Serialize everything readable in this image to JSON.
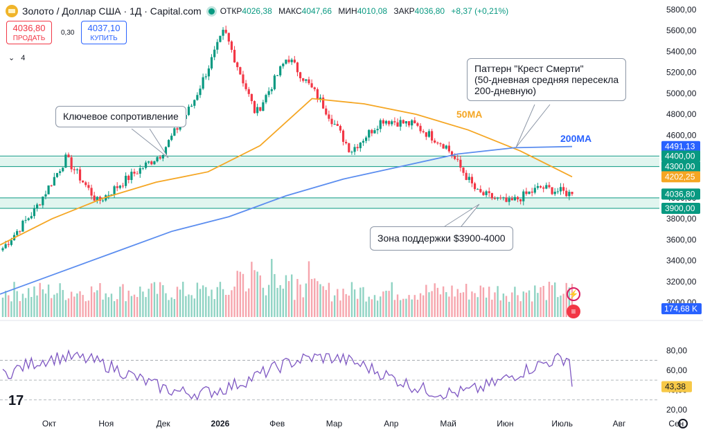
{
  "header": {
    "title": "Золото / Доллар США · 1Д · Capital.com",
    "open_label": "ОТКР",
    "open_value": "4026,38",
    "high_label": "МАКС",
    "high_value": "4047,66",
    "low_label": "МИН",
    "low_value": "4010,08",
    "close_label": "ЗАКР",
    "close_value": "4036,80",
    "change": "+8,37 (+0,21%)"
  },
  "trade": {
    "sell_price": "4036,80",
    "sell_label": "ПРОДАТЬ",
    "spread": "0,30",
    "buy_price": "4037,10",
    "buy_label": "КУПИТЬ",
    "collapse_count": "4"
  },
  "annotations": {
    "resistance": "Ключевое сопротивление",
    "death_cross": [
      "Паттерн \"Крест Смерти\"",
      "(50-дневная средняя пересекла",
      "200-дневную)"
    ],
    "support_zone": "Зона поддержки $3900-4000",
    "ma50_label": "50MA",
    "ma200_label": "200MA"
  },
  "price_axis": {
    "ticks": [
      "5800,00",
      "5600,00",
      "5400,00",
      "5200,00",
      "5000,00",
      "4800,00",
      "4600,00",
      "4400,00",
      "4300,00",
      "4200,00",
      "4000,00",
      "3900,00",
      "3800,00",
      "3600,00",
      "3400,00",
      "3200,00",
      "3000,00"
    ],
    "markers": [
      {
        "label": "4491,13",
        "value": 4491.13,
        "color": "#2962ff"
      },
      {
        "label": "4400,00",
        "value": 4400,
        "color": "#089981"
      },
      {
        "label": "4300,00",
        "value": 4300,
        "color": "#089981"
      },
      {
        "label": "4202,25",
        "value": 4202.25,
        "color": "#f5a623"
      },
      {
        "label": "4036,80",
        "value": 4036.8,
        "color": "#089981"
      },
      {
        "label": "3900,00",
        "value": 3900,
        "color": "#089981"
      }
    ],
    "volume_marker": {
      "label": "174,68 K",
      "color": "#2962ff"
    }
  },
  "rsi_axis": {
    "ticks": [
      "80,00",
      "60,00",
      "40,00",
      "20,00"
    ],
    "marker": {
      "label": "43,38",
      "color": "#f7c948"
    }
  },
  "time_axis": {
    "labels": [
      "Окт",
      "Ноя",
      "Дек",
      "2026",
      "Фев",
      "Мар",
      "Апр",
      "Май",
      "Июн",
      "Июль",
      "Авг",
      "Сен"
    ]
  },
  "chart_data": {
    "type": "candlestick",
    "title": "Золото / Доллар США · 1Д · Capital.com",
    "xlabel": "",
    "ylabel": "",
    "ylim": [
      3000,
      5800
    ],
    "horizontal_levels": [
      4400,
      4300,
      4000,
      3900
    ],
    "series": [
      {
        "name": "XAU/USD",
        "points": [
          {
            "t": "Сен",
            "close": 3520
          },
          {
            "t": "Окт",
            "close": 3880
          },
          {
            "t": "Окт",
            "close": 4380
          },
          {
            "t": "Ноя",
            "close": 3960
          },
          {
            "t": "Дек",
            "close": 4200
          },
          {
            "t": "2026",
            "close": 4420
          },
          {
            "t": "2026",
            "close": 4900
          },
          {
            "t": "Фев",
            "close": 5600
          },
          {
            "t": "Фев",
            "close": 4800
          },
          {
            "t": "Мар",
            "close": 5350
          },
          {
            "t": "Мар",
            "close": 4950
          },
          {
            "t": "Апр",
            "close": 4450
          },
          {
            "t": "Апр",
            "close": 4750
          },
          {
            "t": "Май",
            "close": 4700
          },
          {
            "t": "Июн",
            "close": 4500
          },
          {
            "t": "Июн",
            "close": 4050
          },
          {
            "t": "Июль",
            "close": 3950
          },
          {
            "t": "Июль",
            "close": 4100
          },
          {
            "t": "Авг",
            "close": 4036.8
          }
        ]
      },
      {
        "name": "50MA",
        "points": [
          3550,
          3800,
          4000,
          4150,
          4250,
          4500,
          4950,
          4900,
          4800,
          4650,
          4450,
          4202.25
        ]
      },
      {
        "name": "200MA",
        "points": [
          3080,
          3280,
          3480,
          3680,
          3820,
          4020,
          4180,
          4300,
          4420,
          4480,
          4491.13
        ]
      }
    ],
    "volume": {
      "last": "174,68 K"
    },
    "rsi": {
      "ticks": [
        80,
        60,
        40,
        20
      ],
      "last": 43.38,
      "levels": [
        70,
        50,
        30
      ]
    },
    "colors": {
      "up": "#089981",
      "down": "#f23645",
      "ma50": "#f5a623",
      "ma200": "#5b8def",
      "zone": "#089981"
    }
  }
}
